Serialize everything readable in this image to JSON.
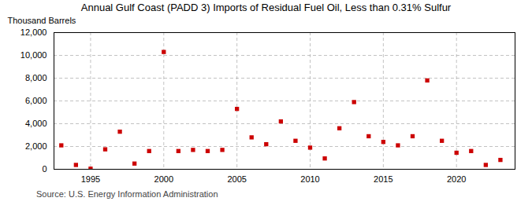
{
  "chart_data": {
    "type": "scatter",
    "title": "Annual Gulf Coast (PADD 3) Imports of Residual Fuel Oil, Less than 0.31% Sulfur",
    "ylabel": "Thousand Barrels",
    "source": "Source: U.S. Energy Information Administration",
    "x": [
      1993,
      1994,
      1995,
      1996,
      1997,
      1998,
      1999,
      2000,
      2001,
      2002,
      2003,
      2004,
      2005,
      2006,
      2007,
      2008,
      2009,
      2010,
      2011,
      2012,
      2013,
      2014,
      2015,
      2016,
      2017,
      2018,
      2019,
      2020,
      2021,
      2022,
      2023
    ],
    "values": [
      2100,
      380,
      50,
      1750,
      3300,
      500,
      1600,
      10300,
      1600,
      1700,
      1600,
      1700,
      5300,
      2800,
      2200,
      4200,
      2500,
      1900,
      950,
      3600,
      5900,
      2900,
      2400,
      2100,
      2900,
      7800,
      2500,
      1450,
      1600,
      380,
      820
    ],
    "color": "#cc0000",
    "marker": "square",
    "xlim": [
      1992.5,
      2024
    ],
    "xticks": [
      1995,
      2000,
      2005,
      2010,
      2015,
      2020
    ],
    "ylim": [
      0,
      12000
    ],
    "yticks": [
      0,
      {
        "value": 2000,
        "label": "2,000"
      },
      {
        "value": 4000,
        "label": "4,000"
      },
      {
        "value": 6000,
        "label": "6,000"
      },
      {
        "value": 8000,
        "label": "8,000"
      },
      {
        "value": 10000,
        "label": "10,000"
      },
      {
        "value": 12000,
        "label": "12,000"
      }
    ],
    "grid": true
  }
}
